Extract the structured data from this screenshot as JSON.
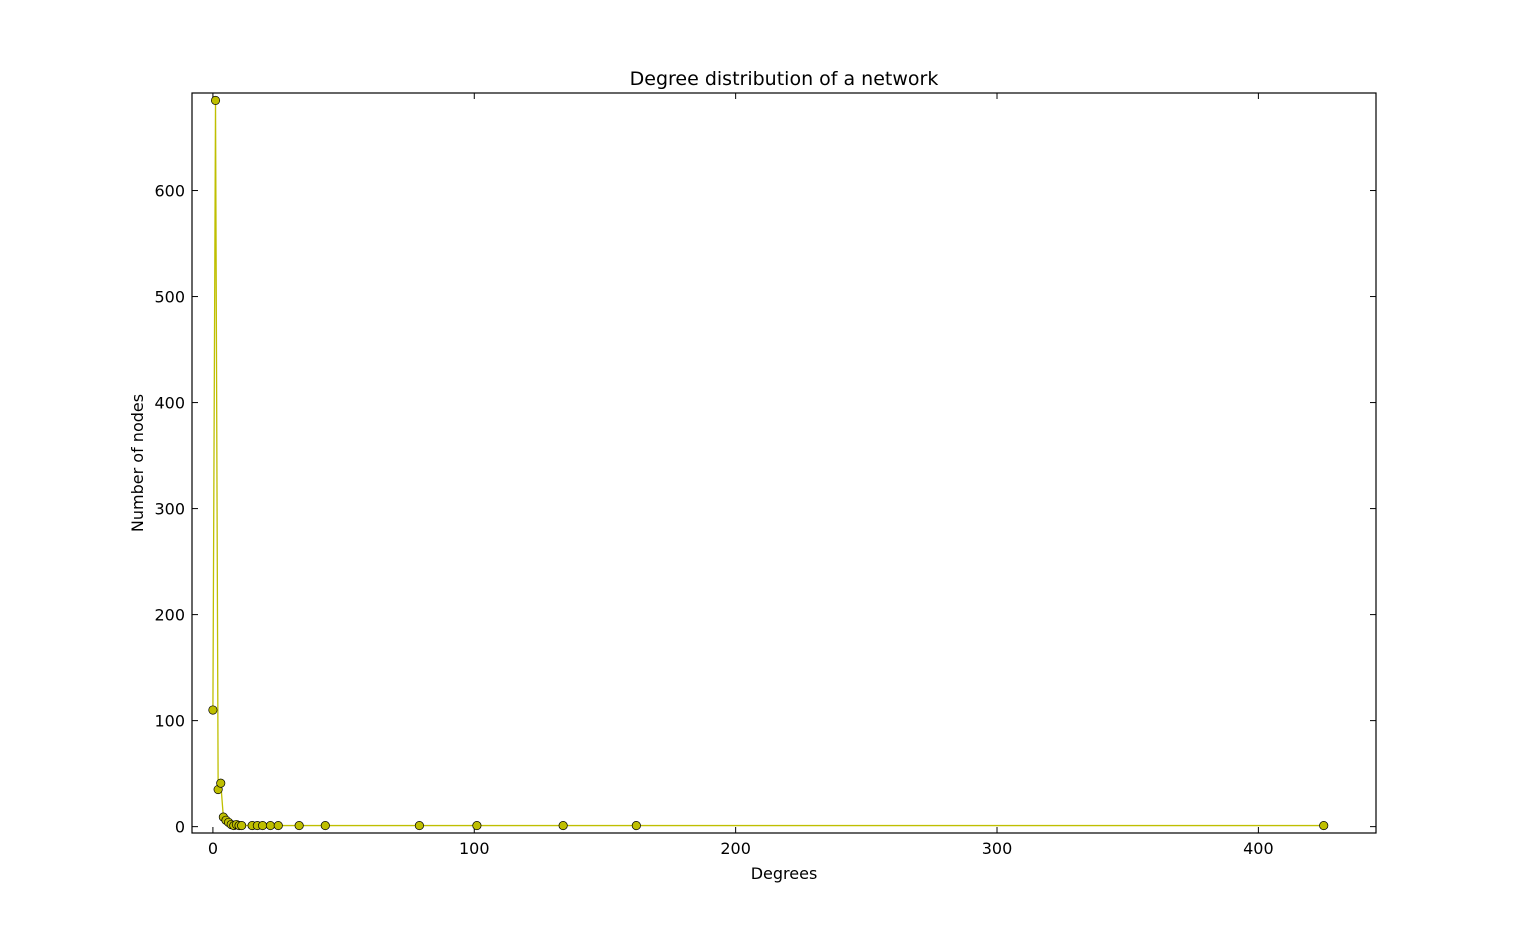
{
  "chart_data": {
    "type": "line",
    "title": "Degree distribution of a network",
    "xlabel": "Degrees",
    "ylabel": "Number of nodes",
    "xlim": [
      -8,
      445
    ],
    "ylim": [
      -6,
      692
    ],
    "xticks": [
      0,
      100,
      200,
      300,
      400
    ],
    "yticks": [
      0,
      100,
      200,
      300,
      400,
      500,
      600
    ],
    "grid": false,
    "series": [
      {
        "color": "#bfbf00",
        "marker": "circle",
        "x": [
          0,
          1,
          2,
          3,
          4,
          5,
          6,
          7,
          8,
          9,
          10,
          11,
          15,
          17,
          19,
          22,
          25,
          33,
          43,
          79,
          101,
          134,
          162,
          425
        ],
        "y": [
          110,
          685,
          35,
          41,
          9,
          6,
          4,
          2,
          1,
          2,
          1,
          1,
          1,
          1,
          1,
          1,
          1,
          1,
          1,
          1,
          1,
          1,
          1,
          1
        ]
      }
    ]
  }
}
